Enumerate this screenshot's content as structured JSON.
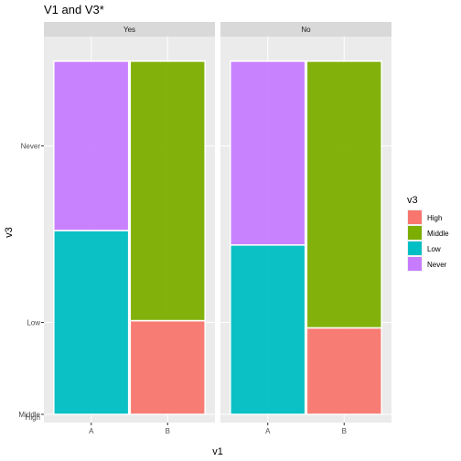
{
  "chart_data": {
    "type": "bar",
    "title": "V1 and V3*",
    "xlabel": "v1",
    "ylabel": "v3",
    "categories": [
      "A",
      "B"
    ],
    "y_ticks": [
      "Never",
      "Low",
      "Middle",
      "High"
    ],
    "legend": {
      "title": "v3",
      "placement": "right",
      "entries": [
        {
          "name": "High",
          "color": "#F8766D"
        },
        {
          "name": "Middle",
          "color": "#7CAE00"
        },
        {
          "name": "Low",
          "color": "#00BFC4"
        },
        {
          "name": "Never",
          "color": "#C77CFF"
        }
      ]
    },
    "grid": true,
    "panels": [
      {
        "label": "Yes",
        "bars": [
          {
            "category": "A",
            "segments": [
              {
                "level": "High",
                "fraction": 0.0
              },
              {
                "level": "Middle",
                "fraction": 0.0
              },
              {
                "level": "Low",
                "fraction": 0.51
              },
              {
                "level": "Never",
                "fraction": 0.47
              }
            ]
          },
          {
            "category": "B",
            "segments": [
              {
                "level": "High",
                "fraction": 0.26
              },
              {
                "level": "Middle",
                "fraction": 0.72
              },
              {
                "level": "Low",
                "fraction": 0.0
              },
              {
                "level": "Never",
                "fraction": 0.0
              }
            ]
          }
        ]
      },
      {
        "label": "No",
        "bars": [
          {
            "category": "A",
            "segments": [
              {
                "level": "High",
                "fraction": 0.0
              },
              {
                "level": "Middle",
                "fraction": 0.0
              },
              {
                "level": "Low",
                "fraction": 0.47
              },
              {
                "level": "Never",
                "fraction": 0.51
              }
            ]
          },
          {
            "category": "B",
            "segments": [
              {
                "level": "High",
                "fraction": 0.24
              },
              {
                "level": "Middle",
                "fraction": 0.74
              },
              {
                "level": "Low",
                "fraction": 0.0
              },
              {
                "level": "Never",
                "fraction": 0.0
              }
            ]
          }
        ]
      }
    ]
  }
}
